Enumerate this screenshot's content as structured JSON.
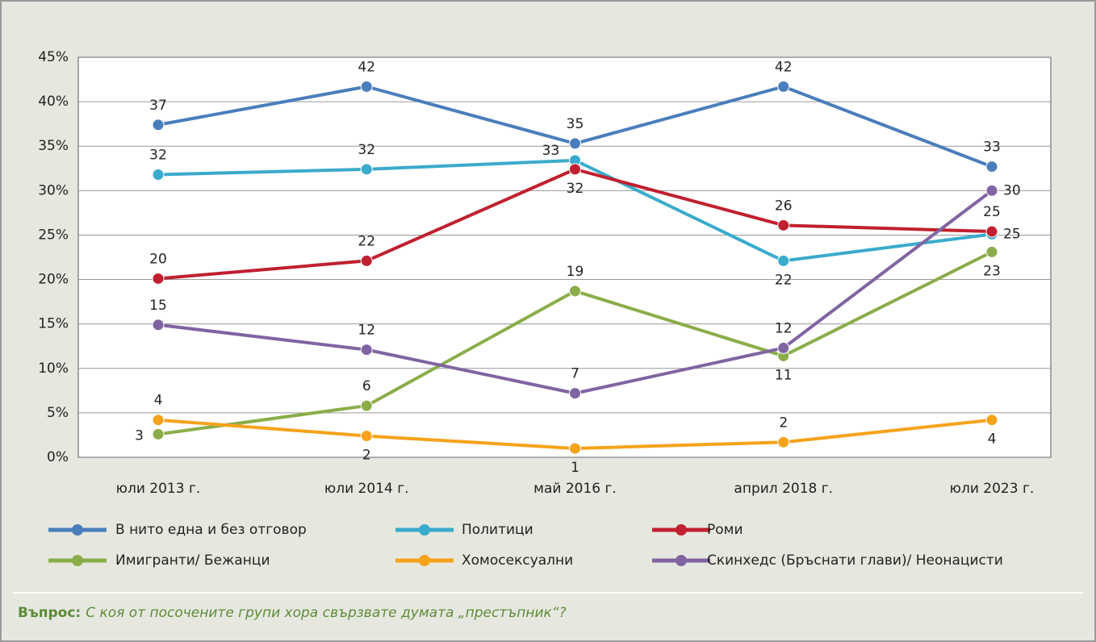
{
  "chart_data": {
    "type": "line",
    "categories": [
      "юли 2013 г.",
      "юли 2014 г.",
      "май 2016 г.",
      "април 2018 г.",
      "юли 2023 г."
    ],
    "ylim": [
      0,
      45
    ],
    "yticks": [
      {
        "value": 0,
        "label": "0%"
      },
      {
        "value": 5,
        "label": "5%"
      },
      {
        "value": 10,
        "label": "10%"
      },
      {
        "value": 15,
        "label": "15%"
      },
      {
        "value": 20,
        "label": "20%"
      },
      {
        "value": 25,
        "label": "25%"
      },
      {
        "value": 30,
        "label": "30%"
      },
      {
        "value": 35,
        "label": "35%"
      },
      {
        "value": 40,
        "label": "40%"
      },
      {
        "value": 45,
        "label": "45%"
      }
    ],
    "grid": true,
    "series": [
      {
        "name": "В нито една и без отговор",
        "color": "#4a7ebb",
        "values": [
          37.4,
          41.7,
          35.3,
          41.7,
          32.7
        ],
        "value_labels": [
          "37",
          "42",
          "35",
          "42",
          "33"
        ]
      },
      {
        "name": "Политици",
        "color": "#3aabcc",
        "values": [
          31.8,
          32.4,
          33.4,
          22.1,
          25.1
        ],
        "value_labels": [
          "32",
          "32",
          "33",
          "22",
          "25"
        ]
      },
      {
        "name": "Роми",
        "color": "#c0202f",
        "values": [
          20.1,
          22.1,
          32.4,
          26.1,
          25.4
        ],
        "value_labels": [
          "20",
          "22",
          "32",
          "26",
          "25"
        ]
      },
      {
        "name": "Имигранти/ Бежанци",
        "color": "#8aad4a",
        "values": [
          2.6,
          5.8,
          18.7,
          11.4,
          23.1
        ],
        "value_labels": [
          "3",
          "6",
          "19",
          "11",
          "23"
        ]
      },
      {
        "name": "Хомосексуални",
        "color": "#f7a21b",
        "values": [
          4.2,
          2.4,
          1.0,
          1.7,
          4.2
        ],
        "value_labels": [
          "4",
          "2",
          "1",
          "2",
          "4"
        ]
      },
      {
        "name": "Скинхедс (Бръснати глави)/ Неонацисти",
        "color": "#8064a2",
        "values": [
          14.9,
          12.1,
          7.2,
          12.3,
          30.0
        ],
        "value_labels": [
          "15",
          "12",
          "7",
          "12",
          "30"
        ]
      }
    ],
    "note_label": "Въпрос:",
    "note": "С коя от посочените групи хора свързвате думата „престъпник“?"
  }
}
